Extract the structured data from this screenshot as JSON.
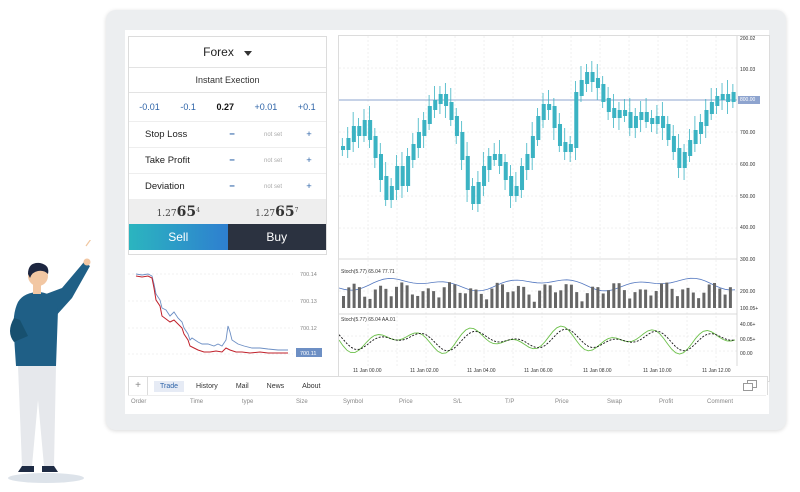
{
  "order_panel": {
    "symbol": "Forex",
    "mode": "Instant Exection",
    "volume": {
      "steps": [
        "-0.01",
        "-0.1",
        "+0.01",
        "+0.1"
      ],
      "value": "0.27"
    },
    "params": [
      {
        "label": "Stop Loss",
        "minus": "−",
        "value": "not set",
        "plus": "+"
      },
      {
        "label": "Take Profit",
        "minus": "−",
        "value": "not set",
        "plus": "+"
      },
      {
        "label": "Deviation",
        "minus": "−",
        "value": "not set",
        "plus": "+"
      }
    ],
    "bid": {
      "main": "1.27",
      "big": "65",
      "sup": "4"
    },
    "ask": {
      "main": "1.27",
      "big": "65",
      "sup": "7"
    },
    "sell_label": "Sell",
    "buy_label": "Buy"
  },
  "mini_chart": {
    "axis_labels": [
      "700.14",
      "700.13",
      "700.12",
      "700.11"
    ]
  },
  "main_chart": {
    "price_labels": [
      "200.02",
      "100.03",
      "800.00",
      "700.00",
      "600.00",
      "500.00",
      "400.00"
    ],
    "current_price": "800.00",
    "stoch_axis": [
      "300.00",
      "200.00",
      "100.05+",
      "40.06+",
      "00.05+",
      "00.00"
    ],
    "stoch1_label": "Stoch(5.77) 65.04 77.71",
    "stoch2_label": "Stoch(5.77) 65.04 AA.01",
    "time_labels": [
      "11 Jan 00.00",
      "11 Jan 02.00",
      "11 Jan 04.00",
      "11 Jan 06.00",
      "11 Jan 08.00",
      "11 Jan 10.00",
      "11 Jan 12.00"
    ]
  },
  "tabs": {
    "plus": "+",
    "items": [
      "Trade",
      "History",
      "Mail",
      "News",
      "About"
    ],
    "active": "Trade"
  },
  "columns": [
    "Order",
    "Time",
    "type",
    "Size",
    "Symbol",
    "Price",
    "S/L",
    "T/P",
    "Price",
    "Swap",
    "Profit",
    "Comment"
  ],
  "colors": {
    "accent": "#2e64a8",
    "candle": "#3bb3c3",
    "sell_start": "#2bb5bf",
    "sell_end": "#2e7fd0",
    "buy": "#2b3240",
    "line_red": "#c0212b",
    "stoch_green": "#6cc04a"
  }
}
